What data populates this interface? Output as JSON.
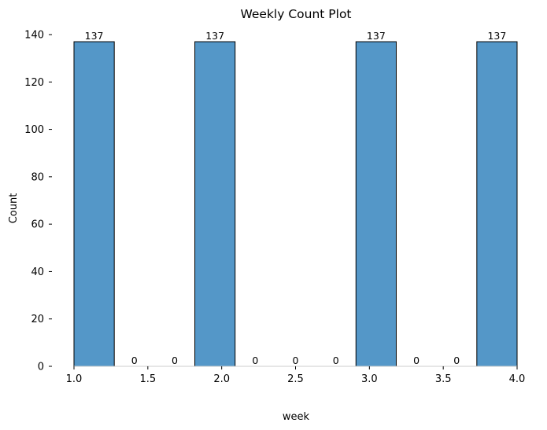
{
  "chart_data": {
    "type": "bar",
    "title": "Weekly Count Plot",
    "xlabel": "week",
    "ylabel": "Count",
    "xlim": [
      1.0,
      4.0
    ],
    "ylim": [
      0,
      140
    ],
    "xticks": [
      1.0,
      1.5,
      2.0,
      2.5,
      3.0,
      3.5,
      4.0
    ],
    "xtick_labels": [
      "1.0",
      "1.5",
      "2.0",
      "2.5",
      "3.0",
      "3.5",
      "4.0"
    ],
    "yticks": [
      0,
      20,
      40,
      60,
      80,
      100,
      120,
      140
    ],
    "ytick_labels": [
      "0",
      "20",
      "40",
      "60",
      "80",
      "100",
      "120",
      "140"
    ],
    "bin_edges": [
      1.0,
      1.2727,
      1.5455,
      1.8182,
      2.0909,
      2.3636,
      2.6364,
      2.9091,
      3.1818,
      3.4545,
      3.7273,
      4.0
    ],
    "values": [
      137,
      0,
      0,
      137,
      0,
      0,
      0,
      137,
      0,
      0,
      137
    ],
    "bar_labels": [
      "137",
      "0",
      "0",
      "137",
      "0",
      "0",
      "0",
      "137",
      "0",
      "0",
      "137"
    ],
    "bar_color": "#5497c8",
    "edge_color": "#000000",
    "grid": false,
    "legend": "none"
  }
}
